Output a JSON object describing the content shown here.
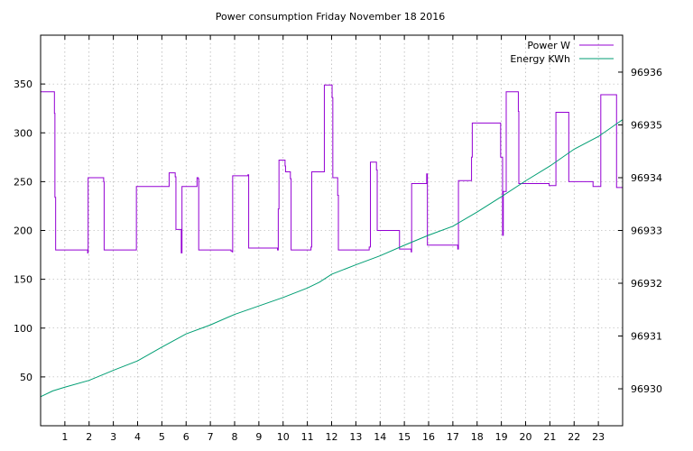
{
  "chart_data": {
    "type": "line",
    "title": "Power consumption Friday November 18 2016",
    "xlabel": "",
    "ylabel": "",
    "y2label": "",
    "xlim": [
      0,
      24
    ],
    "ylim": [
      0,
      400
    ],
    "y2lim": [
      96929.3,
      96936.7
    ],
    "x_ticks": [
      1,
      2,
      3,
      4,
      5,
      6,
      7,
      8,
      9,
      10,
      11,
      12,
      13,
      14,
      15,
      16,
      17,
      18,
      19,
      20,
      21,
      22,
      23
    ],
    "y_ticks": [
      50,
      100,
      150,
      200,
      250,
      300,
      350
    ],
    "y2_ticks": [
      96930,
      96931,
      96932,
      96933,
      96934,
      96935,
      96936
    ],
    "grid": true,
    "legend_position": "top-right",
    "colors": {
      "power": "#9400d3",
      "energy": "#009e73",
      "grid": "#a0a0a0"
    },
    "series": [
      {
        "name": "Power W",
        "axis": "left",
        "step": true,
        "points": [
          [
            0.0,
            342
          ],
          [
            0.55,
            342
          ],
          [
            0.57,
            320
          ],
          [
            0.59,
            234
          ],
          [
            0.62,
            180
          ],
          [
            1.92,
            180
          ],
          [
            1.94,
            177
          ],
          [
            1.96,
            254
          ],
          [
            2.58,
            254
          ],
          [
            2.6,
            250
          ],
          [
            2.62,
            180
          ],
          [
            3.92,
            180
          ],
          [
            3.95,
            245
          ],
          [
            5.28,
            245
          ],
          [
            5.3,
            259
          ],
          [
            5.52,
            259
          ],
          [
            5.55,
            255
          ],
          [
            5.58,
            201
          ],
          [
            5.78,
            201
          ],
          [
            5.8,
            177
          ],
          [
            5.83,
            245
          ],
          [
            6.42,
            245
          ],
          [
            6.45,
            254
          ],
          [
            6.5,
            253
          ],
          [
            6.52,
            180
          ],
          [
            7.82,
            180
          ],
          [
            7.85,
            179
          ],
          [
            7.9,
            178
          ],
          [
            7.92,
            256
          ],
          [
            8.52,
            256
          ],
          [
            8.55,
            257
          ],
          [
            8.58,
            182
          ],
          [
            9.75,
            182
          ],
          [
            9.77,
            180
          ],
          [
            9.8,
            222
          ],
          [
            9.83,
            272
          ],
          [
            10.05,
            272
          ],
          [
            10.08,
            266
          ],
          [
            10.1,
            260
          ],
          [
            10.28,
            260
          ],
          [
            10.3,
            253
          ],
          [
            10.33,
            180
          ],
          [
            11.12,
            180
          ],
          [
            11.15,
            183
          ],
          [
            11.18,
            260
          ],
          [
            11.68,
            260
          ],
          [
            11.7,
            349
          ],
          [
            12.0,
            349
          ],
          [
            12.02,
            336
          ],
          [
            12.05,
            254
          ],
          [
            12.22,
            254
          ],
          [
            12.25,
            236
          ],
          [
            12.28,
            180
          ],
          [
            13.5,
            180
          ],
          [
            13.55,
            183
          ],
          [
            13.6,
            270
          ],
          [
            13.82,
            270
          ],
          [
            13.85,
            262
          ],
          [
            13.88,
            200
          ],
          [
            14.78,
            200
          ],
          [
            14.8,
            181
          ],
          [
            15.25,
            181
          ],
          [
            15.28,
            178
          ],
          [
            15.3,
            248
          ],
          [
            15.9,
            248
          ],
          [
            15.92,
            258
          ],
          [
            15.95,
            185
          ],
          [
            17.18,
            185
          ],
          [
            17.2,
            181
          ],
          [
            17.23,
            251
          ],
          [
            17.75,
            251
          ],
          [
            17.77,
            275
          ],
          [
            17.8,
            310
          ],
          [
            18.95,
            310
          ],
          [
            18.97,
            275
          ],
          [
            19.05,
            195
          ],
          [
            19.08,
            240
          ],
          [
            19.18,
            240
          ],
          [
            19.2,
            342
          ],
          [
            19.68,
            342
          ],
          [
            19.7,
            322
          ],
          [
            19.72,
            248
          ],
          [
            20.95,
            248
          ],
          [
            20.97,
            246
          ],
          [
            21.22,
            246
          ],
          [
            21.25,
            321
          ],
          [
            21.75,
            321
          ],
          [
            21.78,
            250
          ],
          [
            22.75,
            250
          ],
          [
            22.78,
            245
          ],
          [
            23.08,
            245
          ],
          [
            23.1,
            339
          ],
          [
            23.72,
            339
          ],
          [
            23.75,
            244
          ],
          [
            24.0,
            244
          ]
        ]
      },
      {
        "name": "Energy KWh",
        "axis": "right",
        "step": false,
        "points": [
          [
            0.0,
            96929.85
          ],
          [
            0.5,
            96929.96
          ],
          [
            1.0,
            96930.03
          ],
          [
            2.0,
            96930.16
          ],
          [
            3.0,
            96930.35
          ],
          [
            4.0,
            96930.53
          ],
          [
            5.0,
            96930.79
          ],
          [
            6.0,
            96931.04
          ],
          [
            7.0,
            96931.21
          ],
          [
            8.0,
            96931.41
          ],
          [
            9.0,
            96931.57
          ],
          [
            10.0,
            96931.73
          ],
          [
            11.0,
            96931.91
          ],
          [
            11.5,
            96932.02
          ],
          [
            12.0,
            96932.17
          ],
          [
            13.0,
            96932.35
          ],
          [
            14.0,
            96932.52
          ],
          [
            15.0,
            96932.72
          ],
          [
            16.0,
            96932.91
          ],
          [
            17.0,
            96933.08
          ],
          [
            18.0,
            96933.35
          ],
          [
            19.0,
            96933.64
          ],
          [
            20.0,
            96933.94
          ],
          [
            21.0,
            96934.22
          ],
          [
            22.0,
            96934.54
          ],
          [
            23.0,
            96934.78
          ],
          [
            24.0,
            96935.1
          ]
        ]
      }
    ]
  }
}
